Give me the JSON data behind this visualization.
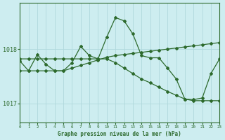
{
  "line_descending_x": [
    0,
    1,
    2,
    3,
    4,
    5,
    6,
    7,
    8,
    9,
    10,
    11,
    12,
    13,
    14,
    15,
    16,
    17,
    18,
    19,
    20,
    21,
    22,
    23
  ],
  "line_descending_y": [
    1017.82,
    1017.82,
    1017.82,
    1017.82,
    1017.82,
    1017.82,
    1017.82,
    1017.82,
    1017.82,
    1017.82,
    1017.82,
    1017.75,
    1017.65,
    1017.55,
    1017.45,
    1017.38,
    1017.3,
    1017.22,
    1017.15,
    1017.08,
    1017.05,
    1017.05,
    1017.05,
    1017.05
  ],
  "line_ascending_x": [
    0,
    1,
    2,
    3,
    4,
    5,
    6,
    7,
    8,
    9,
    10,
    11,
    12,
    13,
    14,
    15,
    16,
    17,
    18,
    19,
    20,
    21,
    22,
    23
  ],
  "line_ascending_y": [
    1017.6,
    1017.6,
    1017.6,
    1017.6,
    1017.6,
    1017.6,
    1017.65,
    1017.7,
    1017.75,
    1017.8,
    1017.85,
    1017.88,
    1017.9,
    1017.92,
    1017.94,
    1017.96,
    1017.98,
    1018.0,
    1018.02,
    1018.04,
    1018.06,
    1018.08,
    1018.1,
    1018.12
  ],
  "line_wavy_x": [
    0,
    1,
    2,
    3,
    4,
    5,
    6,
    7,
    8,
    9,
    10,
    11,
    12,
    13,
    14,
    15,
    16,
    17,
    18,
    19,
    20,
    21,
    22,
    23
  ],
  "line_wavy_y": [
    1017.78,
    1017.6,
    1017.9,
    1017.72,
    1017.6,
    1017.6,
    1017.75,
    1018.05,
    1017.88,
    1017.82,
    1018.22,
    1018.58,
    1018.52,
    1018.28,
    1017.88,
    1017.84,
    1017.84,
    1017.65,
    1017.45,
    1017.08,
    1017.07,
    1017.1,
    1017.55,
    1017.82
  ],
  "line_color": "#2d6a2d",
  "bg_color": "#cdedf0",
  "grid_color": "#b0d8dc",
  "xlabel": "Graphe pression niveau de la mer (hPa)",
  "yticks": [
    1017,
    1018
  ],
  "xticks": [
    0,
    1,
    2,
    3,
    4,
    5,
    6,
    7,
    8,
    9,
    10,
    11,
    12,
    13,
    14,
    15,
    16,
    17,
    18,
    19,
    20,
    21,
    22,
    23
  ],
  "ylim": [
    1016.65,
    1018.85
  ],
  "xlim": [
    0,
    23
  ],
  "marker": "D",
  "markersize": 2.0,
  "linewidth": 0.9
}
